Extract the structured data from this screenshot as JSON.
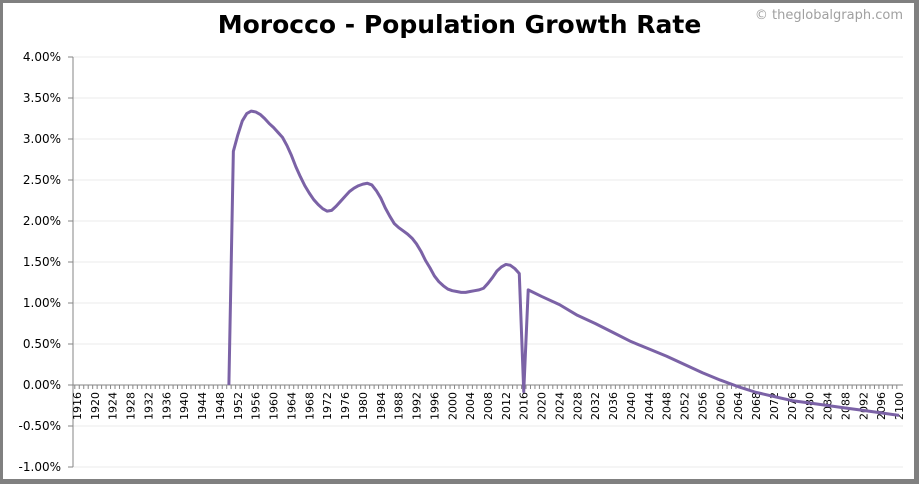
{
  "chart_data": {
    "type": "line",
    "title": "Morocco - Population Growth Rate",
    "credit": "© theglobalgraph.com",
    "xlabel": "",
    "ylabel": "",
    "xlim": [
      1916,
      2100
    ],
    "ylim": [
      -1.0,
      4.0
    ],
    "y_ticks": [
      "4.00%",
      "3.50%",
      "3.00%",
      "2.50%",
      "2.00%",
      "1.50%",
      "1.00%",
      "0.50%",
      "0.00%",
      "-0.50%",
      "-1.00%"
    ],
    "y_tick_values": [
      4.0,
      3.5,
      3.0,
      2.5,
      2.0,
      1.5,
      1.0,
      0.5,
      0.0,
      -0.5,
      -1.0
    ],
    "x_ticks": [
      1916,
      1920,
      1924,
      1928,
      1932,
      1936,
      1940,
      1944,
      1948,
      1952,
      1956,
      1960,
      1964,
      1968,
      1972,
      1976,
      1980,
      1984,
      1988,
      1992,
      1996,
      2000,
      2004,
      2008,
      2012,
      2016,
      2020,
      2024,
      2028,
      2032,
      2036,
      2040,
      2044,
      2048,
      2052,
      2056,
      2060,
      2064,
      2068,
      2072,
      2076,
      2080,
      2084,
      2088,
      2092,
      2096,
      2100
    ],
    "grid": true,
    "line_color": "#7b62a6",
    "series": [
      {
        "x": [
          1950,
          1951,
          1952,
          1953,
          1954,
          1955,
          1956,
          1957,
          1958,
          1959,
          1960,
          1961,
          1962,
          1963,
          1964,
          1965,
          1966,
          1967,
          1968,
          1969,
          1970,
          1971,
          1972,
          1973,
          1974,
          1975,
          1976,
          1977,
          1978,
          1979,
          1980,
          1981,
          1982,
          1983,
          1984,
          1985,
          1986,
          1987,
          1988,
          1989,
          1990,
          1991,
          1992,
          1993,
          1994,
          1995,
          1996,
          1997,
          1998,
          1999,
          2000,
          2001,
          2002,
          2003,
          2004,
          2005,
          2006,
          2007,
          2008,
          2009,
          2010,
          2011,
          2012,
          2013,
          2014,
          2015,
          2016,
          2017,
          2020,
          2024,
          2028,
          2032,
          2036,
          2040,
          2044,
          2048,
          2052,
          2056,
          2060,
          2064,
          2068,
          2072,
          2076,
          2080,
          2084,
          2088,
          2092,
          2096,
          2100
        ],
        "y": [
          0,
          2.85,
          3.05,
          3.22,
          3.31,
          3.34,
          3.33,
          3.3,
          3.25,
          3.19,
          3.14,
          3.08,
          3.02,
          2.92,
          2.8,
          2.66,
          2.54,
          2.43,
          2.34,
          2.26,
          2.2,
          2.15,
          2.12,
          2.13,
          2.18,
          2.24,
          2.3,
          2.36,
          2.4,
          2.43,
          2.45,
          2.46,
          2.44,
          2.37,
          2.28,
          2.16,
          2.06,
          1.97,
          1.92,
          1.88,
          1.84,
          1.79,
          1.72,
          1.63,
          1.52,
          1.43,
          1.33,
          1.26,
          1.21,
          1.17,
          1.15,
          1.14,
          1.13,
          1.13,
          1.14,
          1.15,
          1.16,
          1.18,
          1.24,
          1.31,
          1.39,
          1.44,
          1.47,
          1.46,
          1.42,
          1.36,
          -0.08,
          1.16,
          1.08,
          0.98,
          0.85,
          0.75,
          0.64,
          0.53,
          0.44,
          0.35,
          0.25,
          0.15,
          0.06,
          -0.02,
          -0.09,
          -0.14,
          -0.19,
          -0.22,
          -0.25,
          -0.28,
          -0.31,
          -0.34,
          -0.37
        ]
      }
    ]
  }
}
